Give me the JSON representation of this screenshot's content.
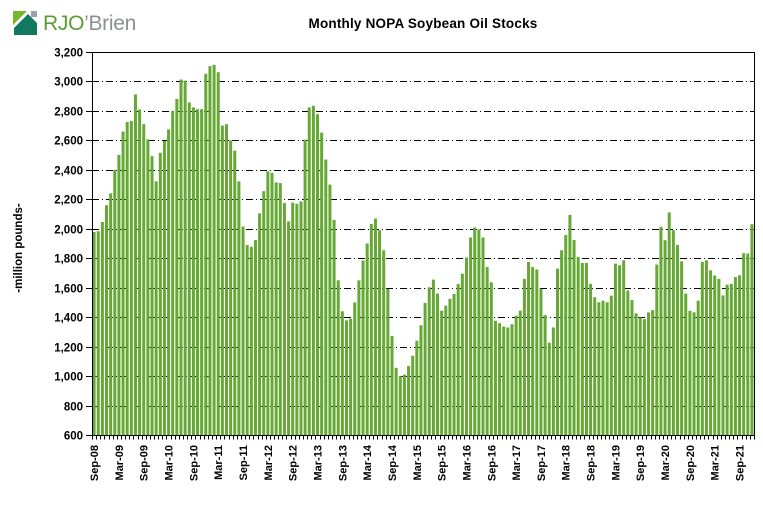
{
  "logo": {
    "brand_green": "RJO",
    "brand_gray": "’Brien"
  },
  "header": {
    "title": "Monthly NOPA Soybean Oil Stocks"
  },
  "chart_data": {
    "type": "bar",
    "title": "Monthly NOPA Soybean Oil Stocks",
    "xlabel": "",
    "ylabel": "-million pounds-",
    "ylim": [
      600,
      3200
    ],
    "ytick_step": 200,
    "ytick_labels": [
      "600",
      "800",
      "1,000",
      "1,200",
      "1,400",
      "1,600",
      "1,800",
      "2,000",
      "2,200",
      "2,400",
      "2,600",
      "2,800",
      "3,000",
      "3,200"
    ],
    "grid": "horizontal dash-dot, plot framed, no legend",
    "legend": "none",
    "bar_color": "#65a834",
    "x_unit": "month",
    "x_start": "Sep-08",
    "x_end": "Dec-21",
    "x_tick_every": 6,
    "x_tick_labels": [
      "Sep-08",
      "Mar-09",
      "Sep-09",
      "Mar-10",
      "Sep-10",
      "Mar-11",
      "Sep-11",
      "Mar-12",
      "Sep-12",
      "Mar-13",
      "Sep-13",
      "Mar-14",
      "Sep-14",
      "Mar-15",
      "Sep-15",
      "Mar-16",
      "Sep-16",
      "Mar-17",
      "Sep-17",
      "Mar-18",
      "Sep-18",
      "Mar-19",
      "Sep-19",
      "Mar-20",
      "Sep-20",
      "Mar-21",
      "Sep-21"
    ],
    "values": [
      1978,
      1983,
      2046,
      2160,
      2240,
      2400,
      2502,
      2660,
      2725,
      2732,
      2912,
      2810,
      2710,
      2607,
      2493,
      2322,
      2516,
      2596,
      2675,
      2801,
      2881,
      3013,
      3006,
      2858,
      2824,
      2812,
      2812,
      3052,
      3104,
      3113,
      3063,
      2700,
      2710,
      2600,
      2530,
      2322,
      2015,
      1890,
      1878,
      1923,
      2105,
      2255,
      2390,
      2380,
      2315,
      2310,
      2175,
      2050,
      2178,
      2170,
      2185,
      2605,
      2824,
      2835,
      2778,
      2653,
      2470,
      2300,
      2060,
      1650,
      1440,
      1378,
      1390,
      1500,
      1650,
      1785,
      1900,
      2032,
      2070,
      1990,
      1854,
      1592,
      1273,
      1056,
      999,
      1010,
      1068,
      1138,
      1240,
      1345,
      1497,
      1603,
      1655,
      1560,
      1444,
      1478,
      1524,
      1558,
      1626,
      1695,
      1804,
      1941,
      2009,
      1996,
      1941,
      1740,
      1637,
      1375,
      1359,
      1336,
      1330,
      1352,
      1410,
      1444,
      1660,
      1775,
      1740,
      1724,
      1592,
      1414,
      1227,
      1330,
      1729,
      1854,
      1957,
      2094,
      1923,
      1809,
      1768,
      1768,
      1626,
      1535,
      1501,
      1512,
      1501,
      1546,
      1763,
      1752,
      1786,
      1581,
      1517,
      1426,
      1398,
      1387,
      1432,
      1448,
      1757,
      2013,
      1922,
      2111,
      1990,
      1890,
      1779,
      1560,
      1443,
      1433,
      1512,
      1775,
      1786,
      1718,
      1683,
      1660,
      1547,
      1620,
      1626,
      1672,
      1684,
      1834,
      1832,
      2031
    ]
  }
}
